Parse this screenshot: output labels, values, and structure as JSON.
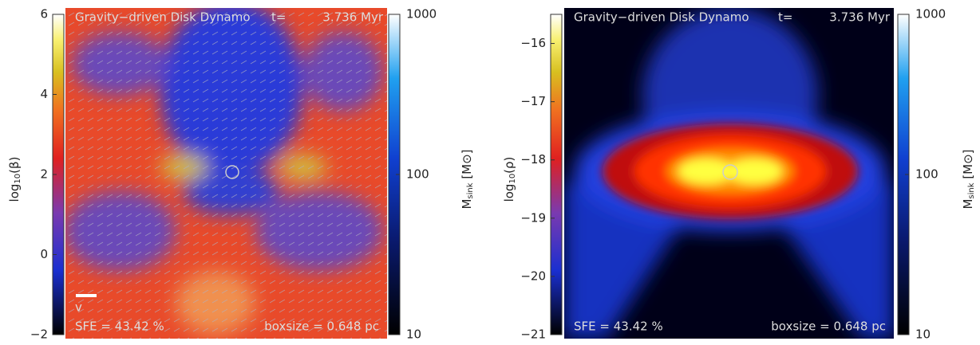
{
  "panels": [
    {
      "title": "Gravity−driven Disk Dynamo",
      "time_label": "t=",
      "time": "3.736 Myr",
      "sfe": "SFE = 43.42 %",
      "boxsize": "boxsize = 0.648 pc",
      "vector_key": "v",
      "left_colorbar": {
        "label_base": "log",
        "label_sub": "10",
        "label_rest": "(β)",
        "ylim": [
          -2,
          6
        ],
        "yticks": [
          {
            "value": -2,
            "label": "−2"
          },
          0,
          2,
          4,
          6
        ]
      },
      "right_colorbar": {
        "label_base": "M",
        "label_sub": "sink",
        "label_rest": " [M⊙]",
        "log_scale": true,
        "ylim": [
          10,
          1000
        ],
        "yticks": [
          10,
          100,
          1000
        ]
      }
    },
    {
      "title": "Gravity−driven Disk Dynamo",
      "time_label": "t=",
      "time": "3.736 Myr",
      "sfe": "SFE = 43.42 %",
      "boxsize": "boxsize = 0.648 pc",
      "left_colorbar": {
        "label_base": "log",
        "label_sub": "10",
        "label_rest": "(ρ)",
        "ylim": [
          -21,
          -15.5
        ],
        "yticks": [
          {
            "value": -21,
            "label": "−21"
          },
          {
            "value": -20,
            "label": "−20"
          },
          {
            "value": -19,
            "label": "−19"
          },
          {
            "value": -18,
            "label": "−18"
          },
          {
            "value": -17,
            "label": "−17"
          },
          {
            "value": -16,
            "label": "−16"
          }
        ]
      },
      "right_colorbar": {
        "label_base": "M",
        "label_sub": "sink",
        "label_rest": " [M⊙]",
        "log_scale": true,
        "ylim": [
          10,
          1000
        ],
        "yticks": [
          10,
          100,
          1000
        ]
      }
    }
  ]
}
